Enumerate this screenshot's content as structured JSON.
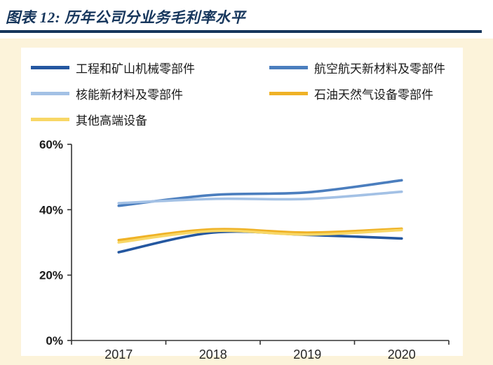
{
  "header": {
    "title": "图表 12: 历年公司分业务毛利率水平"
  },
  "colors": {
    "accent_navy": "#16365c",
    "page_cream": "#fcf3da",
    "axis": "#333333"
  },
  "chart_data": {
    "type": "line",
    "title": "历年公司分业务毛利率水平",
    "x": [
      2017,
      2018,
      2019,
      2020
    ],
    "xticklabels": [
      "2017",
      "2018",
      "2019",
      "2020"
    ],
    "yticks": [
      0,
      20,
      40,
      60
    ],
    "ytick_labels": [
      "0%",
      "20%",
      "40%",
      "60%"
    ],
    "ylim": [
      0,
      60
    ],
    "grid": false,
    "legend_position": "top",
    "series": [
      {
        "name": "工程和矿山机械零部件",
        "color": "#2457a0",
        "values": [
          27.0,
          33.0,
          32.3,
          31.2
        ]
      },
      {
        "name": "航空航天新材料及零部件",
        "color": "#4b7ebe",
        "values": [
          41.2,
          44.5,
          45.3,
          49.0
        ]
      },
      {
        "name": "核能新材料及零部件",
        "color": "#a3c1e5",
        "values": [
          42.0,
          43.3,
          43.3,
          45.5
        ]
      },
      {
        "name": "石油天然气设备零部件",
        "color": "#efb226",
        "values": [
          30.7,
          34.0,
          33.0,
          34.2
        ]
      },
      {
        "name": "其他高端设备",
        "color": "#f8d766",
        "values": [
          30.0,
          33.5,
          32.4,
          33.8
        ]
      }
    ]
  }
}
